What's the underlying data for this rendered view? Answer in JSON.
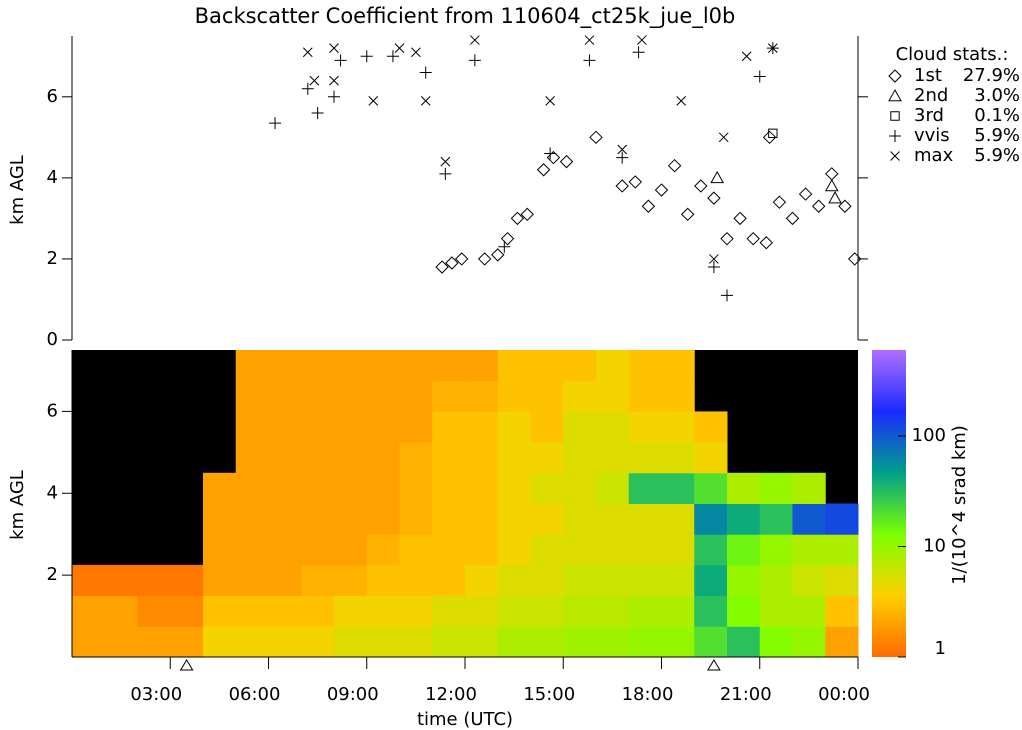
{
  "chart_data": [
    {
      "type": "scatter",
      "title": "Backscatter Coefficient from 110604_ct25k_jue_l0b",
      "y_label": "km AGL",
      "legend_title": "Cloud stats.:",
      "legend": "upper right",
      "xlim": [
        0,
        24
      ],
      "ylim": [
        0,
        7.5
      ],
      "yticks": [
        0,
        2,
        4,
        6
      ],
      "series": [
        {
          "name": "1st",
          "percent": {
            "value": 27.9,
            "label": "27.9%"
          },
          "marker": "diamond",
          "color": "#000000",
          "x": [
            11.3,
            11.6,
            11.9,
            12.6,
            13.0,
            13.3,
            13.6,
            13.9,
            14.4,
            14.7,
            15.1,
            16.0,
            16.8,
            17.2,
            17.6,
            18.0,
            18.4,
            18.8,
            19.2,
            19.6,
            20.0,
            20.4,
            20.8,
            21.2,
            21.6,
            22.0,
            22.4,
            22.8,
            23.2,
            23.6,
            23.9,
            21.3
          ],
          "values": [
            1.8,
            1.9,
            2.0,
            2.0,
            2.1,
            2.5,
            3.0,
            3.1,
            4.2,
            4.5,
            4.4,
            5.0,
            3.8,
            3.9,
            3.3,
            3.7,
            4.3,
            3.1,
            3.8,
            3.5,
            2.5,
            3.0,
            2.5,
            2.4,
            3.4,
            3.0,
            3.6,
            3.3,
            4.1,
            3.3,
            2.0,
            5.0
          ]
        },
        {
          "name": "2nd",
          "percent": {
            "value": 3.0,
            "label": "3.0%"
          },
          "marker": "triangle",
          "color": "#000000",
          "x": [
            23.2,
            23.3,
            19.7
          ],
          "values": [
            3.8,
            3.5,
            4.0
          ]
        },
        {
          "name": "3rd",
          "percent": {
            "value": 0.1,
            "label": "0.1%"
          },
          "marker": "square",
          "color": "#000000",
          "x": [
            21.4
          ],
          "values": [
            5.1
          ]
        },
        {
          "name": "vvis",
          "percent": {
            "value": 5.9,
            "label": "5.9%"
          },
          "marker": "plus",
          "color": "#000000",
          "x": [
            6.2,
            7.2,
            7.5,
            8.0,
            8.2,
            9.0,
            9.8,
            10.8,
            11.4,
            12.3,
            13.2,
            14.6,
            15.8,
            16.8,
            17.3,
            19.6,
            20.0,
            21.0,
            21.4
          ],
          "values": [
            5.35,
            6.2,
            5.6,
            6.0,
            6.9,
            7.0,
            7.0,
            6.6,
            4.1,
            6.9,
            2.3,
            4.6,
            6.9,
            4.5,
            7.1,
            1.8,
            1.1,
            6.5,
            7.2
          ]
        },
        {
          "name": "max",
          "percent": {
            "value": 5.9,
            "label": "5.9%"
          },
          "marker": "cross",
          "color": "#000000",
          "x": [
            7.2,
            7.4,
            8.0,
            8.0,
            9.2,
            10.0,
            10.5,
            10.8,
            11.4,
            12.3,
            14.6,
            15.8,
            16.8,
            17.4,
            18.6,
            19.6,
            19.9,
            20.6,
            21.4
          ],
          "values": [
            7.1,
            6.4,
            6.4,
            7.2,
            5.9,
            7.2,
            7.1,
            5.9,
            4.4,
            7.4,
            5.9,
            7.4,
            4.7,
            7.4,
            5.9,
            2.0,
            5.0,
            7.0,
            7.2
          ]
        }
      ]
    },
    {
      "type": "heatmap",
      "x_label": "time (UTC)",
      "y_label": "km AGL",
      "colorbar_label": "1/(10^4 srad km)",
      "xlim": [
        0,
        24
      ],
      "xticks": [
        {
          "value": 3,
          "label": "03:00"
        },
        {
          "value": 6,
          "label": "06:00"
        },
        {
          "value": 9,
          "label": "09:00"
        },
        {
          "value": 12,
          "label": "12:00"
        },
        {
          "value": 15,
          "label": "15:00"
        },
        {
          "value": 18,
          "label": "18:00"
        },
        {
          "value": 21,
          "label": "21:00"
        },
        {
          "value": 24,
          "label": "00:00"
        }
      ],
      "ylim": [
        0,
        7.5
      ],
      "yticks": [
        2,
        4,
        6
      ],
      "zlim": [
        1,
        600
      ],
      "zticks": [
        1,
        10,
        100
      ],
      "log_scale": true,
      "colorscale": [
        "#ff6a00",
        "#ffd000",
        "#7cff00",
        "#00a08a",
        "#1a2aff",
        "#b070ff"
      ],
      "null_color": "#000000",
      "markers_x": [
        3.5,
        19.6
      ],
      "z": [
        [
          2,
          2,
          2,
          2,
          4,
          4,
          4,
          4,
          5,
          5,
          5,
          6,
          6,
          8,
          8,
          9,
          9,
          10,
          10,
          20,
          30,
          12,
          10,
          2
        ],
        [
          2,
          2,
          1.5,
          1.5,
          3,
          3,
          3,
          3,
          4,
          4,
          4,
          5,
          5,
          6,
          6,
          7,
          7,
          8,
          8,
          30,
          12,
          8,
          8,
          3
        ],
        [
          1.2,
          1.2,
          1.2,
          1.2,
          2,
          2,
          2,
          2.5,
          2.5,
          3,
          3,
          3,
          4,
          5,
          5,
          6,
          6,
          6,
          6,
          40,
          10,
          8,
          6,
          5
        ],
        [
          null,
          null,
          null,
          null,
          2,
          2,
          2,
          2,
          2,
          2.5,
          3,
          3,
          3,
          4,
          5,
          5,
          5,
          5,
          5,
          30,
          15,
          10,
          8,
          8
        ],
        [
          null,
          null,
          null,
          null,
          2,
          2,
          2,
          2,
          2,
          2,
          2.5,
          3,
          3,
          4,
          4,
          5,
          5,
          5,
          5,
          60,
          40,
          30,
          100,
          120
        ],
        [
          null,
          null,
          null,
          null,
          2,
          2,
          2,
          2,
          2,
          2,
          2.5,
          3,
          3,
          4,
          5,
          5,
          6,
          30,
          30,
          20,
          8,
          10,
          8,
          null
        ],
        [
          null,
          null,
          null,
          null,
          null,
          2,
          2,
          2,
          2,
          2,
          2.5,
          3,
          3,
          4,
          4,
          5,
          5,
          5,
          5,
          4,
          null,
          null,
          null,
          null
        ],
        [
          null,
          null,
          null,
          null,
          null,
          2,
          2,
          2,
          2,
          2,
          2,
          3,
          3,
          4,
          3,
          5,
          5,
          4,
          4,
          3,
          null,
          null,
          null,
          null
        ],
        [
          null,
          null,
          null,
          null,
          null,
          2,
          2,
          2,
          2,
          2,
          2,
          2.5,
          2.5,
          3,
          3,
          4,
          4,
          3,
          3,
          null,
          null,
          null,
          null,
          null
        ],
        [
          null,
          null,
          null,
          null,
          null,
          2,
          2,
          2,
          2,
          2,
          2,
          2,
          2,
          3,
          3,
          3,
          4,
          3,
          3,
          null,
          null,
          null,
          null,
          null
        ]
      ]
    }
  ]
}
